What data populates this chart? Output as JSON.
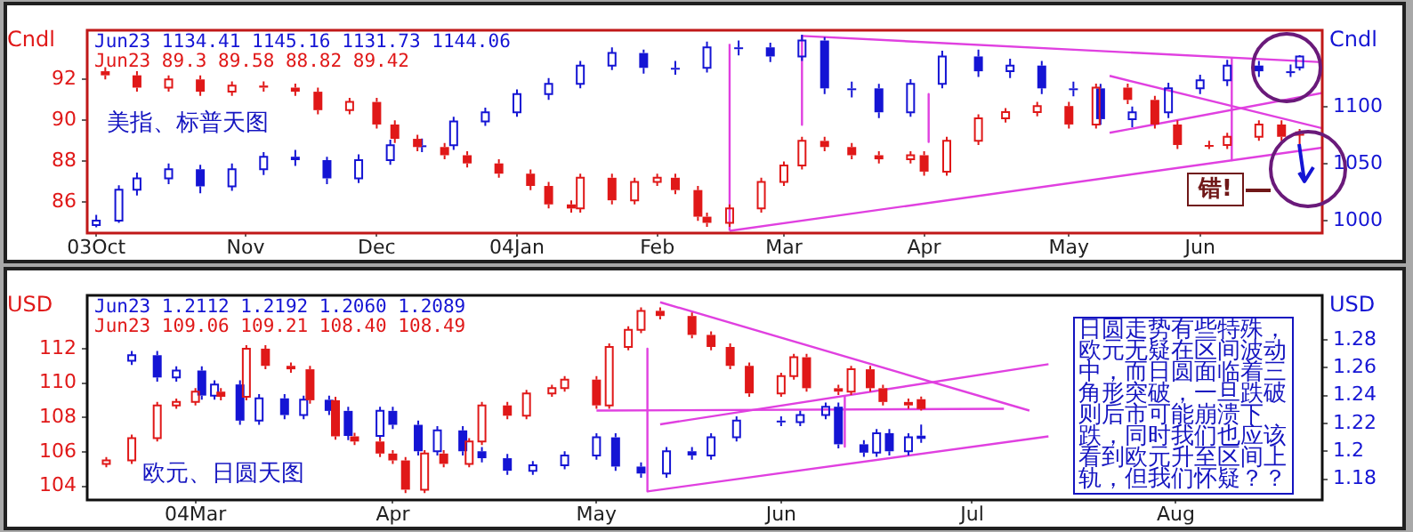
{
  "chart_data": [
    {
      "type": "candlestick",
      "ylabel": "Cndl",
      "y2label": "Cndl",
      "legend": "top left",
      "xlim": [
        "2003-09-29",
        "2004-06-28"
      ],
      "xticks": [
        {
          "value": "2003-10-01",
          "label": "03Oct"
        },
        {
          "value": "2003-11-03",
          "label": "Nov"
        },
        {
          "value": "2003-12-02",
          "label": "Dec"
        },
        {
          "value": "2004-01-02",
          "label": "04Jan"
        },
        {
          "value": "2004-02-02",
          "label": "Feb"
        },
        {
          "value": "2004-03-01",
          "label": "Mar"
        },
        {
          "value": "2004-04-01",
          "label": "Apr"
        },
        {
          "value": "2004-05-03",
          "label": "May"
        },
        {
          "value": "2004-06-01",
          "label": "Jun"
        }
      ],
      "ylim": [
        84.5,
        94.4
      ],
      "yticks": [
        86,
        88,
        90,
        92
      ],
      "y2lim": [
        989,
        1167
      ],
      "y2ticks": [
        1000,
        1050,
        1100
      ],
      "annotations": [
        "美指、标普天图",
        "错!"
      ],
      "series": [
        {
          "name": "Jun23 1134.41 1145.16 1131.73 1144.06",
          "color": "#1414d4",
          "axis": "y2",
          "x": [
            "2003-10-01",
            "2003-10-06",
            "2003-10-10",
            "2003-10-17",
            "2003-10-24",
            "2003-10-31",
            "2003-11-07",
            "2003-11-14",
            "2003-11-21",
            "2003-11-28",
            "2003-12-05",
            "2003-12-12",
            "2003-12-19",
            "2003-12-26",
            "2004-01-02",
            "2004-01-09",
            "2004-01-16",
            "2004-01-23",
            "2004-01-30",
            "2004-02-06",
            "2004-02-13",
            "2004-02-20",
            "2004-02-27",
            "2004-03-05",
            "2004-03-10",
            "2004-03-16",
            "2004-03-22",
            "2004-03-29",
            "2004-04-05",
            "2004-04-13",
            "2004-04-20",
            "2004-04-27",
            "2004-05-04",
            "2004-05-10",
            "2004-05-17",
            "2004-05-25",
            "2004-06-01",
            "2004-06-07",
            "2004-06-14",
            "2004-06-21",
            "2004-06-23"
          ],
          "ohlc": [
            [
              996,
              1005,
              994,
              1000
            ],
            [
              1000,
              1031,
              998,
              1027
            ],
            [
              1027,
              1042,
              1022,
              1037
            ],
            [
              1037,
              1050,
              1032,
              1045
            ],
            [
              1045,
              1049,
              1024,
              1030
            ],
            [
              1030,
              1050,
              1026,
              1045
            ],
            [
              1045,
              1060,
              1040,
              1056
            ],
            [
              1056,
              1062,
              1048,
              1053
            ],
            [
              1053,
              1056,
              1032,
              1037
            ],
            [
              1037,
              1058,
              1033,
              1053
            ],
            [
              1053,
              1071,
              1049,
              1066
            ],
            [
              1066,
              1072,
              1060,
              1066
            ],
            [
              1066,
              1091,
              1062,
              1087
            ],
            [
              1087,
              1099,
              1083,
              1095
            ],
            [
              1095,
              1115,
              1091,
              1111
            ],
            [
              1111,
              1125,
              1106,
              1120
            ],
            [
              1120,
              1140,
              1116,
              1136
            ],
            [
              1136,
              1152,
              1132,
              1147
            ],
            [
              1147,
              1150,
              1129,
              1134
            ],
            [
              1134,
              1140,
              1128,
              1134
            ],
            [
              1134,
              1157,
              1130,
              1152
            ],
            [
              1152,
              1158,
              1145,
              1152
            ],
            [
              1152,
              1156,
              1139,
              1144
            ],
            [
              1144,
              1163,
              1140,
              1158
            ],
            [
              1158,
              1161,
              1111,
              1116
            ],
            [
              1116,
              1122,
              1108,
              1116
            ],
            [
              1116,
              1120,
              1090,
              1095
            ],
            [
              1095,
              1124,
              1091,
              1120
            ],
            [
              1120,
              1149,
              1116,
              1144
            ],
            [
              1144,
              1150,
              1126,
              1131
            ],
            [
              1131,
              1142,
              1125,
              1136
            ],
            [
              1136,
              1140,
              1111,
              1116
            ],
            [
              1116,
              1122,
              1109,
              1116
            ],
            [
              1116,
              1120,
              1084,
              1089
            ],
            [
              1089,
              1100,
              1082,
              1095
            ],
            [
              1095,
              1121,
              1090,
              1116
            ],
            [
              1116,
              1128,
              1111,
              1123
            ],
            [
              1123,
              1141,
              1118,
              1136
            ],
            [
              1136,
              1140,
              1126,
              1131
            ],
            [
              1131,
              1137,
              1126,
              1131
            ],
            [
              1134.41,
              1145.16,
              1131.73,
              1144.06
            ]
          ]
        },
        {
          "name": "Jun23 89.3 89.58 88.82 89.42",
          "color": "#e01818",
          "x": [
            "2003-10-03",
            "2003-10-10",
            "2003-10-17",
            "2003-10-24",
            "2003-10-31",
            "2003-11-07",
            "2003-11-14",
            "2003-11-19",
            "2003-11-26",
            "2003-12-02",
            "2003-12-06",
            "2003-12-11",
            "2003-12-17",
            "2003-12-22",
            "2003-12-29",
            "2004-01-05",
            "2004-01-09",
            "2004-01-14",
            "2004-01-16",
            "2004-01-23",
            "2004-01-28",
            "2004-02-02",
            "2004-02-06",
            "2004-02-11",
            "2004-02-13",
            "2004-02-18",
            "2004-02-25",
            "2004-03-01",
            "2004-03-05",
            "2004-03-10",
            "2004-03-16",
            "2004-03-22",
            "2004-03-29",
            "2004-04-01",
            "2004-04-06",
            "2004-04-13",
            "2004-04-19",
            "2004-04-26",
            "2004-05-03",
            "2004-05-09",
            "2004-05-16",
            "2004-05-22",
            "2004-05-27",
            "2004-06-03",
            "2004-06-07",
            "2004-06-14",
            "2004-06-19",
            "2004-06-23"
          ],
          "ohlc": [
            [
              92.4,
              92.6,
              92.0,
              92.2
            ],
            [
              92.2,
              92.4,
              91.4,
              91.6
            ],
            [
              91.6,
              92.2,
              91.4,
              92.0
            ],
            [
              92.0,
              92.2,
              91.2,
              91.4
            ],
            [
              91.4,
              91.9,
              91.2,
              91.7
            ],
            [
              91.7,
              91.9,
              91.4,
              91.6
            ],
            [
              91.6,
              91.8,
              91.2,
              91.4
            ],
            [
              91.4,
              91.6,
              90.3,
              90.5
            ],
            [
              90.5,
              91.1,
              90.3,
              90.9
            ],
            [
              90.9,
              91.1,
              89.6,
              89.8
            ],
            [
              89.8,
              90.0,
              88.9,
              89.1
            ],
            [
              89.1,
              89.3,
              88.5,
              88.7
            ],
            [
              88.7,
              88.9,
              88.1,
              88.3
            ],
            [
              88.3,
              88.5,
              87.7,
              87.9
            ],
            [
              87.9,
              88.1,
              87.2,
              87.4
            ],
            [
              87.4,
              87.6,
              86.6,
              86.8
            ],
            [
              86.8,
              87.0,
              85.7,
              85.9
            ],
            [
              85.9,
              86.1,
              85.5,
              85.7
            ],
            [
              85.7,
              87.4,
              85.5,
              87.2
            ],
            [
              87.2,
              87.4,
              85.9,
              86.1
            ],
            [
              86.1,
              87.2,
              85.9,
              87.0
            ],
            [
              87.0,
              87.4,
              86.8,
              87.2
            ],
            [
              87.2,
              87.4,
              86.4,
              86.6
            ],
            [
              86.6,
              86.8,
              85.1,
              85.3
            ],
            [
              85.3,
              85.5,
              84.8,
              85.0
            ],
            [
              85.0,
              85.9,
              84.8,
              85.7
            ],
            [
              85.7,
              87.2,
              85.5,
              87.0
            ],
            [
              87.0,
              88.0,
              86.8,
              87.8
            ],
            [
              87.8,
              89.2,
              87.6,
              89.0
            ],
            [
              89.0,
              89.2,
              88.5,
              88.7
            ],
            [
              88.7,
              88.9,
              88.1,
              88.3
            ],
            [
              88.3,
              88.5,
              87.9,
              88.1
            ],
            [
              88.1,
              88.5,
              87.9,
              88.3
            ],
            [
              88.3,
              88.5,
              87.3,
              87.5
            ],
            [
              87.5,
              89.2,
              87.3,
              89.0
            ],
            [
              89.0,
              90.3,
              88.8,
              90.1
            ],
            [
              90.1,
              90.6,
              89.9,
              90.4
            ],
            [
              90.4,
              90.9,
              90.2,
              90.7
            ],
            [
              90.7,
              90.9,
              89.6,
              89.8
            ],
            [
              89.8,
              91.8,
              89.6,
              91.6
            ],
            [
              91.6,
              91.8,
              90.8,
              91.0
            ],
            [
              91.0,
              91.2,
              89.6,
              89.8
            ],
            [
              89.8,
              90.0,
              88.6,
              88.8
            ],
            [
              88.8,
              89.0,
              88.6,
              88.8
            ],
            [
              88.8,
              89.4,
              88.6,
              89.2
            ],
            [
              89.2,
              90.0,
              89.0,
              89.8
            ],
            [
              89.8,
              90.0,
              89.0,
              89.2
            ],
            [
              89.3,
              89.58,
              88.82,
              89.42
            ]
          ]
        },
        {
          "type": "line",
          "color": "#e040e0",
          "axis": "y2",
          "x": [
            "2004-02-18",
            "2004-06-28"
          ],
          "values": [
            991,
            1064
          ]
        },
        {
          "type": "line",
          "color": "#e040e0",
          "axis": "y2",
          "x": [
            "2004-03-05",
            "2004-06-28"
          ],
          "values": [
            1162,
            1139
          ]
        },
        {
          "type": "line",
          "color": "#e040e0",
          "axis": "y2",
          "x": [
            "2004-05-12",
            "2004-06-28"
          ],
          "values": [
            1127,
            1081
          ]
        },
        {
          "type": "line",
          "color": "#e040e0",
          "axis": "y2",
          "x": [
            "2004-05-12",
            "2004-06-28"
          ],
          "values": [
            1077,
            1112
          ]
        },
        {
          "type": "line",
          "color": "#e040e0",
          "axis": "y2",
          "x": [
            "2004-02-18",
            "2004-02-18"
          ],
          "values": [
            991,
            1155
          ]
        },
        {
          "type": "line",
          "color": "#e040e0",
          "axis": "y2",
          "x": [
            "2004-03-05",
            "2004-03-05"
          ],
          "values": [
            1162,
            1084
          ]
        },
        {
          "type": "line",
          "color": "#e040e0",
          "axis": "y2",
          "x": [
            "2004-04-02",
            "2004-04-02"
          ],
          "values": [
            1111,
            1069
          ]
        },
        {
          "type": "line",
          "color": "#e040e0",
          "axis": "y2",
          "x": [
            "2004-06-08",
            "2004-06-08"
          ],
          "values": [
            1142,
            1053
          ]
        }
      ]
    },
    {
      "type": "candlestick",
      "ylabel": "USD",
      "y2label": "USD",
      "legend": "top left",
      "xlim": [
        "2004-02-13",
        "2004-08-25"
      ],
      "xticks": [
        {
          "value": "2004-03-01",
          "label": "04Mar"
        },
        {
          "value": "2004-04-01",
          "label": "Apr"
        },
        {
          "value": "2004-05-03",
          "label": "May"
        },
        {
          "value": "2004-06-01",
          "label": "Jun"
        },
        {
          "value": "2004-07-01",
          "label": "Jul"
        },
        {
          "value": "2004-08-02",
          "label": "Aug"
        }
      ],
      "ylim": [
        103.2,
        115.1
      ],
      "yticks": [
        104,
        106,
        108,
        110,
        112
      ],
      "y2lim": [
        1.165,
        1.312
      ],
      "y2ticks": [
        1.18,
        1.2,
        1.22,
        1.24,
        1.26,
        1.28
      ],
      "annotations": [
        "欧元、日圆天图",
        "日圆走势有些特殊，欧元无疑在区间波动中，而日圆面临着三角形突破，一旦跌破则后市可能崩溃下跌，同时我们也应该看到欧元升至区间上轨，但我们怀疑？？"
      ],
      "series": [
        {
          "name": "Jun23 1.2112 1.2192 1.2060 1.2089",
          "color": "#1414d4",
          "axis": "y2",
          "x": [
            "2004-02-20",
            "2004-02-24",
            "2004-02-27",
            "2004-03-02",
            "2004-03-04",
            "2004-03-08",
            "2004-03-11",
            "2004-03-15",
            "2004-03-18",
            "2004-03-22",
            "2004-03-25",
            "2004-03-30",
            "2004-04-01",
            "2004-04-05",
            "2004-04-08",
            "2004-04-12",
            "2004-04-15",
            "2004-04-19",
            "2004-04-23",
            "2004-04-28",
            "2004-05-03",
            "2004-05-06",
            "2004-05-10",
            "2004-05-14",
            "2004-05-18",
            "2004-05-21",
            "2004-05-25",
            "2004-06-01",
            "2004-06-04",
            "2004-06-08",
            "2004-06-10",
            "2004-06-14",
            "2004-06-16",
            "2004-06-18",
            "2004-06-21",
            "2004-06-23"
          ],
          "ohlc": [
            [
              1.265,
              1.272,
              1.262,
              1.269
            ],
            [
              1.269,
              1.272,
              1.25,
              1.253
            ],
            [
              1.253,
              1.261,
              1.25,
              1.258
            ],
            [
              1.258,
              1.261,
              1.237,
              1.24
            ],
            [
              1.24,
              1.251,
              1.237,
              1.248
            ],
            [
              1.248,
              1.251,
              1.219,
              1.222
            ],
            [
              1.222,
              1.241,
              1.219,
              1.238
            ],
            [
              1.238,
              1.241,
              1.223,
              1.226
            ],
            [
              1.226,
              1.24,
              1.223,
              1.237
            ],
            [
              1.237,
              1.24,
              1.226,
              1.229
            ],
            [
              1.229,
              1.232,
              1.208,
              1.211
            ],
            [
              1.211,
              1.232,
              1.208,
              1.229
            ],
            [
              1.229,
              1.232,
              1.216,
              1.219
            ],
            [
              1.219,
              1.222,
              1.197,
              1.2
            ],
            [
              1.2,
              1.218,
              1.197,
              1.215
            ],
            [
              1.215,
              1.218,
              1.197,
              1.2
            ],
            [
              1.2,
              1.203,
              1.192,
              1.195
            ],
            [
              1.195,
              1.198,
              1.183,
              1.186
            ],
            [
              1.186,
              1.193,
              1.183,
              1.19
            ],
            [
              1.19,
              1.2,
              1.187,
              1.197
            ],
            [
              1.197,
              1.213,
              1.194,
              1.21
            ],
            [
              1.21,
              1.213,
              1.186,
              1.189
            ],
            [
              1.189,
              1.192,
              1.181,
              1.184
            ],
            [
              1.184,
              1.203,
              1.181,
              1.2
            ],
            [
              1.2,
              1.203,
              1.194,
              1.197
            ],
            [
              1.197,
              1.213,
              1.194,
              1.21
            ],
            [
              1.21,
              1.225,
              1.207,
              1.222
            ],
            [
              1.222,
              1.225,
              1.218,
              1.221
            ],
            [
              1.221,
              1.229,
              1.218,
              1.226
            ],
            [
              1.226,
              1.235,
              1.223,
              1.232
            ],
            [
              1.232,
              1.235,
              1.202,
              1.205
            ],
            [
              1.205,
              1.208,
              1.196,
              1.199
            ],
            [
              1.199,
              1.216,
              1.196,
              1.213
            ],
            [
              1.213,
              1.216,
              1.197,
              1.2
            ],
            [
              1.2,
              1.213,
              1.197,
              1.21
            ],
            [
              1.2112,
              1.2192,
              1.206,
              1.2089
            ]
          ]
        },
        {
          "name": "Jun23 109.06 109.21 108.40 108.49",
          "color": "#e01818",
          "x": [
            "2004-02-16",
            "2004-02-20",
            "2004-02-24",
            "2004-02-27",
            "2004-03-01",
            "2004-03-05",
            "2004-03-09",
            "2004-03-12",
            "2004-03-16",
            "2004-03-19",
            "2004-03-23",
            "2004-03-26",
            "2004-03-30",
            "2004-04-01",
            "2004-04-03",
            "2004-04-06",
            "2004-04-09",
            "2004-04-13",
            "2004-04-15",
            "2004-04-19",
            "2004-04-22",
            "2004-04-26",
            "2004-04-28",
            "2004-05-03",
            "2004-05-05",
            "2004-05-08",
            "2004-05-10",
            "2004-05-13",
            "2004-05-18",
            "2004-05-21",
            "2004-05-24",
            "2004-05-27",
            "2004-06-01",
            "2004-06-03",
            "2004-06-05",
            "2004-06-10",
            "2004-06-12",
            "2004-06-15",
            "2004-06-17",
            "2004-06-21",
            "2004-06-23"
          ],
          "ohlc": [
            [
              105.3,
              105.7,
              105.1,
              105.5
            ],
            [
              105.5,
              107.0,
              105.3,
              106.8
            ],
            [
              106.8,
              108.9,
              106.6,
              108.7
            ],
            [
              108.7,
              109.1,
              108.5,
              108.9
            ],
            [
              108.9,
              109.7,
              108.7,
              109.5
            ],
            [
              109.5,
              109.7,
              109.0,
              109.2
            ],
            [
              109.2,
              112.2,
              109.0,
              112.0
            ],
            [
              112.0,
              112.2,
              110.8,
              111.0
            ],
            [
              111.0,
              111.2,
              110.6,
              110.8
            ],
            [
              110.8,
              111.0,
              108.8,
              109.0
            ],
            [
              109.0,
              109.2,
              106.7,
              106.9
            ],
            [
              106.9,
              107.1,
              106.4,
              106.6
            ],
            [
              106.6,
              106.8,
              105.7,
              105.9
            ],
            [
              105.9,
              106.1,
              105.3,
              105.5
            ],
            [
              105.5,
              105.7,
              103.6,
              103.8
            ],
            [
              103.8,
              106.1,
              103.6,
              105.9
            ],
            [
              105.9,
              106.1,
              105.1,
              105.3
            ],
            [
              105.3,
              106.8,
              105.1,
              106.6
            ],
            [
              106.6,
              108.9,
              106.4,
              108.7
            ],
            [
              108.7,
              108.9,
              107.9,
              108.1
            ],
            [
              108.1,
              109.6,
              107.9,
              109.4
            ],
            [
              109.4,
              109.9,
              109.2,
              109.7
            ],
            [
              109.7,
              110.4,
              109.5,
              110.2
            ],
            [
              110.2,
              110.4,
              108.5,
              108.7
            ],
            [
              108.7,
              112.3,
              108.5,
              112.1
            ],
            [
              112.1,
              113.3,
              111.9,
              113.1
            ],
            [
              113.1,
              114.4,
              112.9,
              114.2
            ],
            [
              114.2,
              114.4,
              113.7,
              113.9
            ],
            [
              113.9,
              114.1,
              112.6,
              112.8
            ],
            [
              112.8,
              113.0,
              111.9,
              112.1
            ],
            [
              112.1,
              112.3,
              110.8,
              111.0
            ],
            [
              111.0,
              111.2,
              109.2,
              109.4
            ],
            [
              109.4,
              110.6,
              109.2,
              110.4
            ],
            [
              110.4,
              111.7,
              110.2,
              111.5
            ],
            [
              111.5,
              111.7,
              109.5,
              109.7
            ],
            [
              109.7,
              109.9,
              109.3,
              109.5
            ],
            [
              109.5,
              111.0,
              109.3,
              110.8
            ],
            [
              110.8,
              111.0,
              109.5,
              109.7
            ],
            [
              109.7,
              109.9,
              108.7,
              108.9
            ],
            [
              108.9,
              109.1,
              108.5,
              108.7
            ],
            [
              109.06,
              109.21,
              108.4,
              108.49
            ]
          ]
        },
        {
          "type": "line",
          "color": "#e040e0",
          "x": [
            "2004-05-13",
            "2004-07-10"
          ],
          "values": [
            114.7,
            108.4
          ]
        },
        {
          "type": "line",
          "color": "#e040e0",
          "x": [
            "2004-05-03",
            "2004-07-06"
          ],
          "values": [
            108.4,
            108.5
          ]
        },
        {
          "type": "line",
          "color": "#e040e0",
          "x": [
            "2004-05-13",
            "2004-07-13"
          ],
          "values": [
            107.6,
            111.1
          ]
        },
        {
          "type": "line",
          "color": "#e040e0",
          "x": [
            "2004-05-11",
            "2004-07-13"
          ],
          "values": [
            103.7,
            106.9
          ]
        },
        {
          "type": "line",
          "color": "#e040e0",
          "x": [
            "2004-05-11",
            "2004-05-11"
          ],
          "values": [
            112.0,
            103.7
          ]
        },
        {
          "type": "line",
          "color": "#e040e0",
          "x": [
            "2004-06-11",
            "2004-06-11"
          ],
          "values": [
            109.2,
            106.3
          ]
        }
      ]
    }
  ]
}
